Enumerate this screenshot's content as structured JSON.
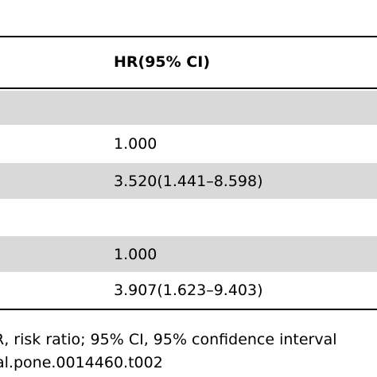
{
  "table": {
    "header": {
      "hr_col": "HR(95% CI)"
    },
    "rows": [
      {
        "hr": ""
      },
      {
        "hr": "1.000"
      },
      {
        "hr": "3.520(1.441–8.598)"
      },
      {
        "hr": ""
      },
      {
        "hr": "1.000"
      },
      {
        "hr": "3.907(1.623–9.403)"
      }
    ]
  },
  "footnote": {
    "line1": "R, risk ratio; 95% CI, 95% confidence interval",
    "line2": "al.pone.0014460.t002"
  },
  "colors": {
    "row_shade": "#d9d9d9",
    "rule": "#000000",
    "text": "#000000"
  }
}
